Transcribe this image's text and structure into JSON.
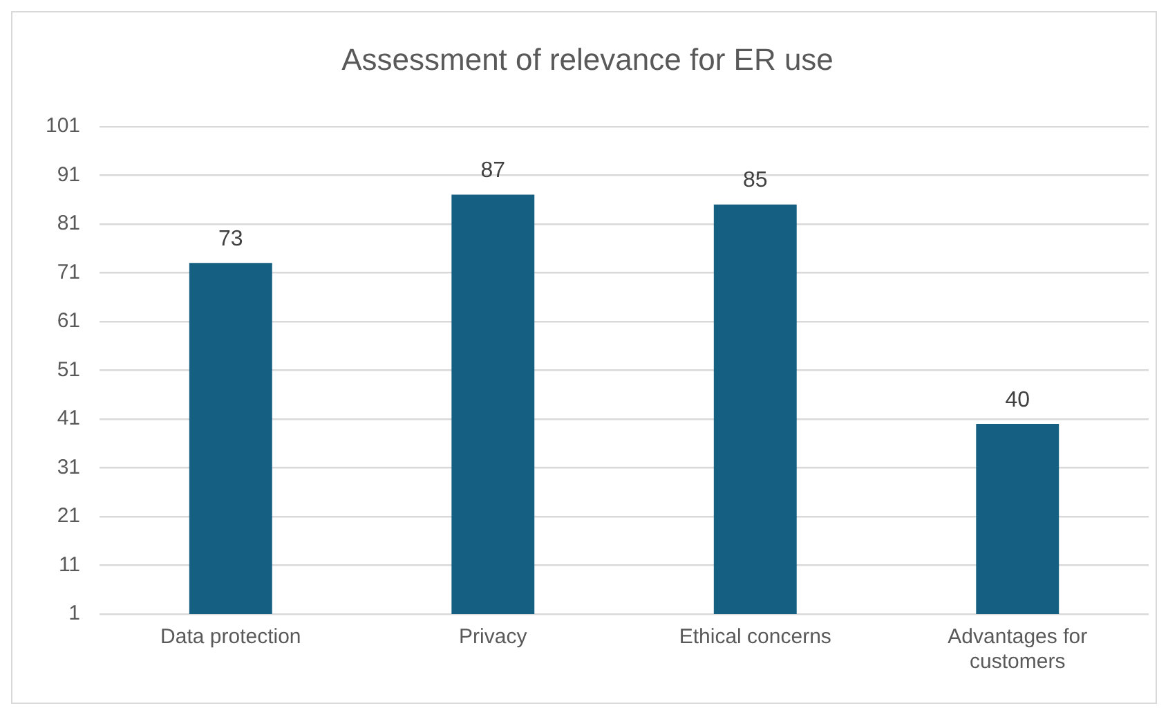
{
  "chart_data": {
    "type": "bar",
    "title": "Assessment of relevance for ER use",
    "categories": [
      "Data protection",
      "Privacy",
      "Ethical concerns",
      "Advantages for customers"
    ],
    "values": [
      73,
      87,
      85,
      40
    ],
    "color": "#156082",
    "ylim": [
      1,
      101
    ],
    "yticks": [
      1,
      11,
      21,
      31,
      41,
      51,
      61,
      71,
      81,
      91,
      101
    ],
    "grid": "y",
    "data_labels": true
  }
}
